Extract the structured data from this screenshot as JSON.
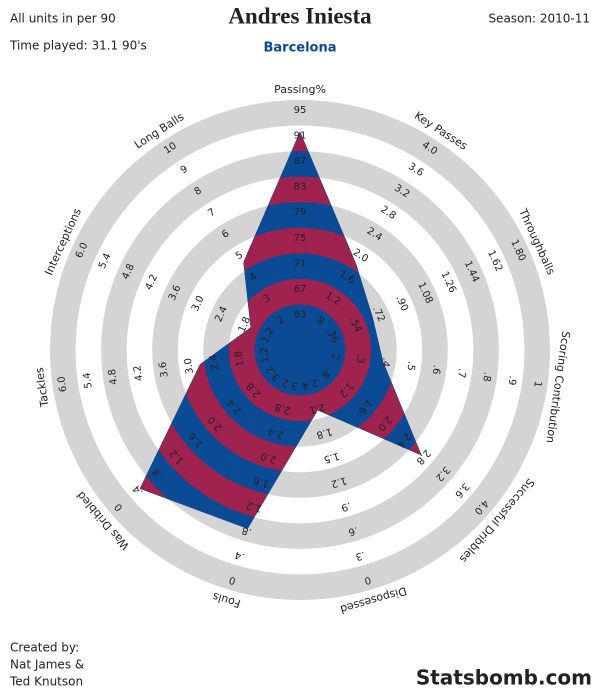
{
  "chart_data": {
    "type": "radar",
    "title": "Andres Iniesta",
    "subtitle": "Barcelona",
    "note": "All units in per 90",
    "time_played": "Time played: 31.1 90's",
    "season": "Season: 2010-11",
    "credits": [
      "Created by:",
      "Nat James &",
      "Ted Knutson"
    ],
    "brand": "Statsbomb.com",
    "band_colors": [
      "#0b4a94",
      "#a0224f"
    ],
    "ring_color": "#d4d4d4",
    "axes": [
      {
        "name": "Passing%",
        "lim": [
          59,
          95
        ],
        "ticks": [
          63,
          67,
          71,
          75,
          79,
          83,
          87,
          91,
          95
        ]
      },
      {
        "name": "Key Passes",
        "lim": [
          0.4,
          4
        ],
        "ticks": [
          {
            "value": 0.8,
            "label": ".8"
          },
          1.2,
          1.6,
          {
            "value": 2,
            "label": "2.0"
          },
          2.4,
          2.8,
          3.2,
          3.6,
          {
            "value": 4,
            "label": "4.0"
          }
        ]
      },
      {
        "name": "Throughballs",
        "lim": [
          0.18,
          1.8
        ],
        "ticks": [
          {
            "value": 0.36,
            "label": ".36"
          },
          {
            "value": 0.54,
            "label": ".54"
          },
          {
            "value": 0.72,
            "label": ".72"
          },
          {
            "value": 0.9,
            "label": ".90"
          },
          1.08,
          1.26,
          1.44,
          1.62,
          {
            "value": 1.8,
            "label": "1.80"
          }
        ]
      },
      {
        "name": "Scoring Contribution",
        "lim": [
          0.1,
          1
        ],
        "ticks": [
          {
            "value": 0.2,
            "label": ".2"
          },
          {
            "value": 0.3,
            "label": ".3"
          },
          {
            "value": 0.4,
            "label": ".4"
          },
          {
            "value": 0.5,
            "label": ".5"
          },
          {
            "value": 0.6,
            "label": ".6"
          },
          {
            "value": 0.7,
            "label": ".7"
          },
          {
            "value": 0.8,
            "label": ".8"
          },
          {
            "value": 0.9,
            "label": ".9"
          },
          1
        ]
      },
      {
        "name": "Successful Dribbles",
        "lim": [
          0.4,
          4
        ],
        "ticks": [
          {
            "value": 0.8,
            "label": ".8"
          },
          1.2,
          1.6,
          {
            "value": 2,
            "label": "2.0"
          },
          2.4,
          2.8,
          3.2,
          3.6,
          {
            "value": 4,
            "label": "4.0"
          }
        ]
      },
      {
        "name": "Disposessed",
        "lim": [
          2.7,
          0
        ],
        "ticks": [
          2.4,
          2.1,
          1.8,
          1.5,
          1.2,
          {
            "value": 0.9,
            "label": ".9"
          },
          {
            "value": 0.6,
            "label": ".6"
          },
          {
            "value": 0.3,
            "label": ".3"
          },
          0
        ]
      },
      {
        "name": "Fouls",
        "lim": [
          3.6,
          0
        ],
        "ticks": [
          3.2,
          2.8,
          2.4,
          {
            "value": 2,
            "label": "2.0"
          },
          1.6,
          1.2,
          {
            "value": 0.8,
            "label": ".8"
          },
          {
            "value": 0.4,
            "label": ".4"
          },
          0
        ]
      },
      {
        "name": "Was Dribbled",
        "lim": [
          3.6,
          0
        ],
        "ticks": [
          3.2,
          2.8,
          2.4,
          {
            "value": 2,
            "label": "2.0"
          },
          1.6,
          1.2,
          {
            "value": 0.8,
            "label": ".8"
          },
          {
            "value": 0.4,
            "label": ".4"
          },
          0
        ]
      },
      {
        "name": "Tackles",
        "lim": [
          0.6,
          6
        ],
        "ticks": [
          1.2,
          1.8,
          2.4,
          {
            "value": 3,
            "label": "3.0"
          },
          3.6,
          4.2,
          4.8,
          5.4,
          {
            "value": 6,
            "label": "6.0"
          }
        ]
      },
      {
        "name": "Interceptions",
        "lim": [
          0.6,
          6
        ],
        "ticks": [
          1.2,
          1.8,
          2.4,
          {
            "value": 3,
            "label": "3.0"
          },
          3.6,
          4.2,
          4.8,
          5.4,
          {
            "value": 6,
            "label": "6.0"
          }
        ]
      },
      {
        "name": "Long Balls",
        "lim": [
          1,
          10
        ],
        "ticks": [
          2,
          3,
          4,
          5,
          6,
          7,
          8,
          9,
          10
        ]
      }
    ],
    "values": [
      90,
      1.7,
      0.6,
      0.35,
      2.6,
      2.2,
      1.0,
      0.6,
      2.5,
      1.4,
      4.3
    ]
  }
}
